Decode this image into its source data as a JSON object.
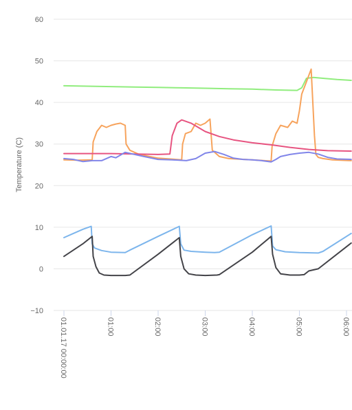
{
  "chart_data": {
    "type": "line",
    "ylabel": "Temperature (C)",
    "ylim": [
      -10,
      60
    ],
    "y_ticks": [
      -10,
      0,
      10,
      20,
      30,
      40,
      50,
      60
    ],
    "y_tick_labels": [
      "−10",
      "0",
      "10",
      "20",
      "30",
      "40",
      "50",
      "60"
    ],
    "x_unit": "hours",
    "xlim": [
      0,
      6.1
    ],
    "x_ticks": [
      0,
      1,
      2,
      3,
      4,
      5,
      6
    ],
    "x_tick_labels": [
      "01.01.17 00:00:00",
      "01:00",
      "02:00",
      "03:00",
      "04:00",
      "05:00",
      "06:00"
    ],
    "grid": true,
    "legend": "none",
    "series": [
      {
        "color": "#90ed7d",
        "x": [
          0,
          0.5,
          1,
          1.5,
          2,
          2.5,
          3,
          3.5,
          4,
          4.5,
          4.95,
          5.05,
          5.15,
          5.3,
          5.5,
          5.8,
          6.1
        ],
        "y": [
          44.0,
          43.9,
          43.8,
          43.7,
          43.6,
          43.5,
          43.4,
          43.3,
          43.2,
          43.0,
          42.9,
          43.5,
          45.8,
          46.0,
          45.8,
          45.5,
          45.3
        ]
      },
      {
        "color": "#f7a35c",
        "x": [
          0,
          0.3,
          0.6,
          0.62,
          0.7,
          0.8,
          0.9,
          1.0,
          1.1,
          1.2,
          1.3,
          1.32,
          1.4,
          1.6,
          2.0,
          2.5,
          2.52,
          2.58,
          2.7,
          2.8,
          2.9,
          3.0,
          3.1,
          3.15,
          3.2,
          3.3,
          3.5,
          4.0,
          4.4,
          4.42,
          4.5,
          4.6,
          4.75,
          4.85,
          4.95,
          5.0,
          5.05,
          5.15,
          5.25,
          5.32,
          5.35,
          5.4,
          5.5,
          5.7,
          6.1
        ],
        "y": [
          26.2,
          26.1,
          26.2,
          30.5,
          33.0,
          34.5,
          34.0,
          34.5,
          34.8,
          35.0,
          34.5,
          30.0,
          28.5,
          27.5,
          26.6,
          26.2,
          30.0,
          32.5,
          33.0,
          35.0,
          34.5,
          35.0,
          36.0,
          28.5,
          28.0,
          27.0,
          26.5,
          26.2,
          25.9,
          29.5,
          32.5,
          34.5,
          34.0,
          35.5,
          35.0,
          38.0,
          42.0,
          45.0,
          48.0,
          32.0,
          27.5,
          26.8,
          26.5,
          26.2,
          26.0
        ]
      },
      {
        "color": "#e75480",
        "x": [
          0,
          0.5,
          1.0,
          1.5,
          2.0,
          2.25,
          2.3,
          2.4,
          2.5,
          2.7,
          3.0,
          3.3,
          3.6,
          4.0,
          4.4,
          4.8,
          5.2,
          5.6,
          6.1
        ],
        "y": [
          27.7,
          27.7,
          27.7,
          27.6,
          27.5,
          27.6,
          32.0,
          35.0,
          35.8,
          35.0,
          33.0,
          31.8,
          31.0,
          30.3,
          29.8,
          29.2,
          28.7,
          28.4,
          28.3
        ]
      },
      {
        "color": "#8085e9",
        "x": [
          0,
          0.2,
          0.4,
          0.6,
          0.8,
          1.0,
          1.1,
          1.3,
          1.5,
          1.7,
          2.0,
          2.3,
          2.6,
          2.8,
          3.0,
          3.2,
          3.4,
          3.6,
          3.8,
          4.0,
          4.2,
          4.4,
          4.5,
          4.6,
          4.8,
          5.0,
          5.2,
          5.4,
          5.6,
          5.8,
          6.1
        ],
        "y": [
          26.5,
          26.3,
          25.8,
          26.0,
          26.0,
          27.0,
          26.7,
          28.0,
          27.5,
          27.0,
          26.3,
          26.2,
          26.0,
          26.5,
          27.8,
          28.2,
          27.5,
          26.6,
          26.3,
          26.2,
          26.0,
          25.7,
          26.3,
          27.0,
          27.5,
          27.8,
          28.0,
          27.6,
          26.8,
          26.4,
          26.3
        ]
      },
      {
        "color": "#7cb5ec",
        "x": [
          0,
          0.2,
          0.4,
          0.58,
          0.6,
          0.65,
          0.8,
          1.0,
          1.3,
          1.4,
          2.0,
          2.45,
          2.48,
          2.55,
          2.7,
          3.0,
          3.2,
          3.3,
          4.0,
          4.4,
          4.43,
          4.5,
          4.7,
          5.0,
          5.4,
          5.5,
          6.1
        ],
        "y": [
          7.5,
          8.5,
          9.5,
          10.2,
          6.0,
          5.0,
          4.4,
          4.0,
          3.9,
          4.5,
          7.8,
          10.2,
          6.0,
          4.5,
          4.2,
          4.0,
          3.9,
          4.0,
          8.2,
          10.3,
          5.5,
          4.6,
          4.1,
          3.9,
          3.8,
          4.2,
          8.5
        ]
      },
      {
        "color": "#434348",
        "x": [
          0,
          0.2,
          0.4,
          0.6,
          0.62,
          0.68,
          0.75,
          0.85,
          1.0,
          1.3,
          1.4,
          2.0,
          2.45,
          2.48,
          2.55,
          2.65,
          2.8,
          3.0,
          3.25,
          3.3,
          4.0,
          4.4,
          4.43,
          4.5,
          4.6,
          4.8,
          5.0,
          5.1,
          5.2,
          5.4,
          6.1
        ],
        "y": [
          3.0,
          4.5,
          6.0,
          7.8,
          3.0,
          0.5,
          -1.0,
          -1.5,
          -1.6,
          -1.6,
          -1.5,
          3.5,
          7.5,
          3.0,
          0.0,
          -1.2,
          -1.5,
          -1.6,
          -1.5,
          -1.4,
          4.0,
          7.8,
          3.5,
          0.3,
          -1.2,
          -1.5,
          -1.5,
          -1.4,
          -0.5,
          0.0,
          6.2
        ]
      }
    ]
  }
}
